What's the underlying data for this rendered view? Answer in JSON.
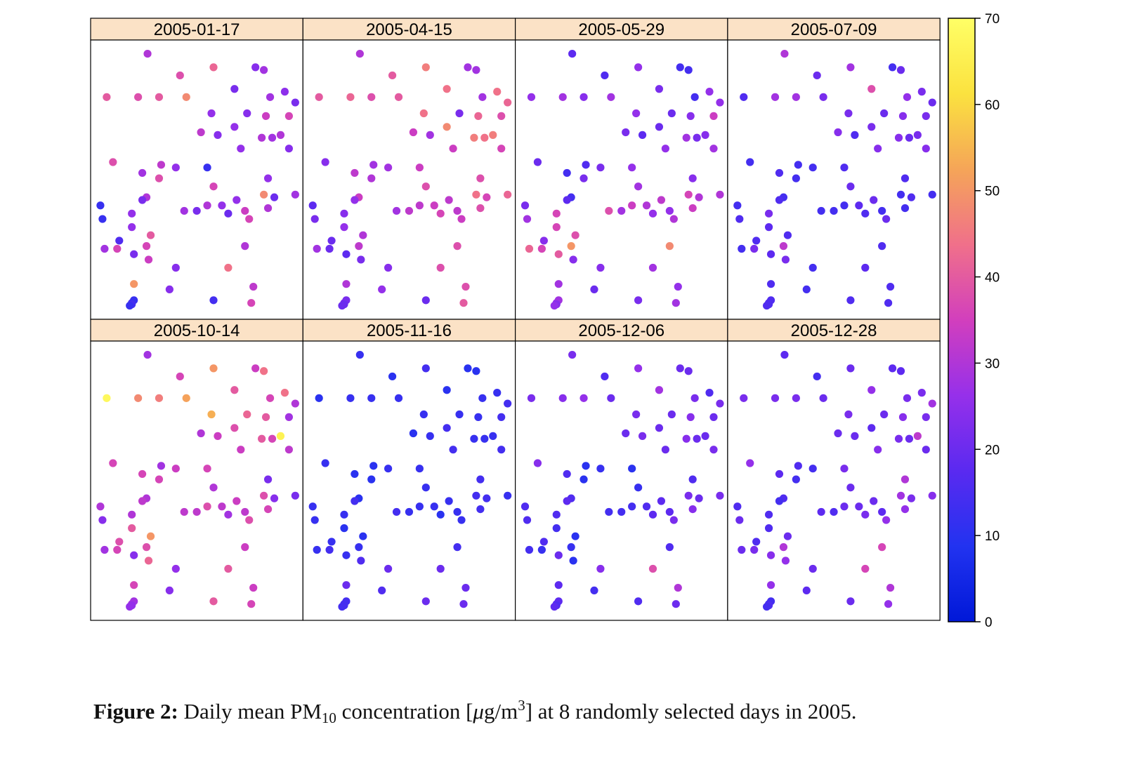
{
  "caption": {
    "label": "Figure 2:",
    "text_before": " Daily mean PM",
    "subscript": "10",
    "text_mid": " concentration [",
    "mu": "μ",
    "text_unit": "g/m",
    "superscript": "3",
    "text_after": "] at 8 randomly selected days in 2005."
  },
  "colorbar": {
    "min": 0,
    "max": 70,
    "ticks": [
      0,
      10,
      20,
      30,
      40,
      50,
      60,
      70
    ],
    "colors": [
      "#0018d8",
      "#2233f0",
      "#5a2af0",
      "#9630ea",
      "#d23fbd",
      "#f0708a",
      "#f5a558",
      "#fbe23f",
      "#ffff66"
    ]
  },
  "chart_data": {
    "type": "scatter",
    "title": "",
    "xlabel": "",
    "ylabel": "",
    "value_range": [
      0,
      70
    ],
    "stations": [
      [
        0.265,
        0.03
      ],
      [
        0.42,
        0.11
      ],
      [
        0.58,
        0.08
      ],
      [
        0.78,
        0.08
      ],
      [
        0.82,
        0.09
      ],
      [
        0.68,
        0.16
      ],
      [
        0.92,
        0.17
      ],
      [
        0.22,
        0.19
      ],
      [
        0.32,
        0.19
      ],
      [
        0.45,
        0.19
      ],
      [
        0.07,
        0.19
      ],
      [
        0.85,
        0.19
      ],
      [
        0.97,
        0.21
      ],
      [
        0.74,
        0.25
      ],
      [
        0.57,
        0.25
      ],
      [
        0.83,
        0.26
      ],
      [
        0.94,
        0.26
      ],
      [
        0.68,
        0.3
      ],
      [
        0.52,
        0.32
      ],
      [
        0.6,
        0.33
      ],
      [
        0.81,
        0.34
      ],
      [
        0.86,
        0.34
      ],
      [
        0.9,
        0.33
      ],
      [
        0.71,
        0.38
      ],
      [
        0.94,
        0.38
      ],
      [
        0.1,
        0.43
      ],
      [
        0.24,
        0.47
      ],
      [
        0.33,
        0.44
      ],
      [
        0.4,
        0.45
      ],
      [
        0.55,
        0.45
      ],
      [
        0.84,
        0.49
      ],
      [
        0.32,
        0.49
      ],
      [
        0.58,
        0.52
      ],
      [
        0.82,
        0.55
      ],
      [
        0.04,
        0.59
      ],
      [
        0.26,
        0.56
      ],
      [
        0.24,
        0.57
      ],
      [
        0.5,
        0.61
      ],
      [
        0.55,
        0.59
      ],
      [
        0.62,
        0.59
      ],
      [
        0.69,
        0.57
      ],
      [
        0.73,
        0.61
      ],
      [
        0.87,
        0.56
      ],
      [
        0.84,
        0.6
      ],
      [
        0.97,
        0.55
      ],
      [
        0.44,
        0.61
      ],
      [
        0.19,
        0.62
      ],
      [
        0.65,
        0.62
      ],
      [
        0.75,
        0.64
      ],
      [
        0.05,
        0.64
      ],
      [
        0.19,
        0.67
      ],
      [
        0.13,
        0.72
      ],
      [
        0.28,
        0.7
      ],
      [
        0.26,
        0.74
      ],
      [
        0.06,
        0.75
      ],
      [
        0.12,
        0.75
      ],
      [
        0.2,
        0.77
      ],
      [
        0.73,
        0.74
      ],
      [
        0.27,
        0.79
      ],
      [
        0.4,
        0.82
      ],
      [
        0.65,
        0.82
      ],
      [
        0.2,
        0.88
      ],
      [
        0.37,
        0.9
      ],
      [
        0.77,
        0.89
      ],
      [
        0.58,
        0.94
      ],
      [
        0.19,
        0.95
      ],
      [
        0.2,
        0.94
      ],
      [
        0.19,
        0.955
      ],
      [
        0.18,
        0.96
      ],
      [
        0.76,
        0.95
      ]
    ],
    "panels": [
      {
        "title": "2005-01-17",
        "values": [
          30,
          38,
          42,
          24,
          28,
          22,
          25,
          38,
          40,
          48,
          40,
          28,
          22,
          24,
          26,
          34,
          36,
          26,
          32,
          24,
          30,
          28,
          30,
          26,
          24,
          38,
          28,
          32,
          26,
          12,
          26,
          38,
          36,
          48,
          12,
          30,
          22,
          22,
          30,
          26,
          26,
          34,
          20,
          30,
          28,
          28,
          26,
          20,
          36,
          12,
          26,
          16,
          40,
          36,
          28,
          36,
          22,
          30,
          34,
          24,
          44,
          50,
          24,
          32,
          14,
          14,
          12,
          14,
          12,
          36
        ]
      },
      {
        "title": "2005-04-15",
        "values": [
          30,
          40,
          46,
          28,
          28,
          44,
          44,
          42,
          38,
          40,
          40,
          28,
          42,
          22,
          44,
          42,
          38,
          48,
          34,
          28,
          46,
          44,
          46,
          34,
          36,
          24,
          32,
          28,
          28,
          34,
          38,
          30,
          38,
          44,
          18,
          34,
          26,
          32,
          32,
          34,
          32,
          32,
          36,
          38,
          42,
          28,
          24,
          36,
          34,
          22,
          26,
          20,
          30,
          32,
          28,
          20,
          18,
          38,
          22,
          24,
          38,
          30,
          26,
          38,
          20,
          22,
          22,
          20,
          20,
          40
        ]
      },
      {
        "title": "2005-05-29",
        "values": [
          18,
          16,
          26,
          14,
          14,
          22,
          26,
          28,
          24,
          28,
          26,
          14,
          26,
          20,
          26,
          24,
          34,
          20,
          22,
          18,
          28,
          22,
          24,
          26,
          28,
          20,
          14,
          16,
          22,
          26,
          24,
          22,
          28,
          36,
          22,
          14,
          18,
          28,
          34,
          30,
          32,
          26,
          30,
          34,
          30,
          38,
          36,
          26,
          30,
          28,
          36,
          24,
          38,
          50,
          42,
          36,
          40,
          48,
          24,
          24,
          28,
          28,
          20,
          26,
          22,
          26,
          28,
          24,
          26,
          28
        ]
      },
      {
        "title": "2005-07-09",
        "values": [
          30,
          20,
          28,
          14,
          20,
          38,
          22,
          28,
          28,
          22,
          16,
          26,
          20,
          20,
          22,
          24,
          22,
          22,
          24,
          16,
          24,
          20,
          22,
          24,
          24,
          14,
          16,
          14,
          14,
          16,
          16,
          14,
          20,
          14,
          14,
          14,
          16,
          14,
          14,
          18,
          20,
          14,
          16,
          14,
          14,
          14,
          22,
          16,
          20,
          16,
          18,
          16,
          16,
          32,
          14,
          22,
          18,
          16,
          22,
          14,
          18,
          16,
          14,
          16,
          16,
          16,
          16,
          16,
          16,
          16
        ]
      },
      {
        "title": "2005-10-14",
        "values": [
          28,
          36,
          50,
          34,
          44,
          40,
          44,
          48,
          46,
          52,
          68,
          36,
          30,
          42,
          54,
          40,
          28,
          38,
          30,
          34,
          40,
          36,
          66,
          34,
          32,
          36,
          36,
          28,
          34,
          36,
          22,
          36,
          30,
          38,
          30,
          30,
          32,
          32,
          38,
          32,
          34,
          32,
          24,
          36,
          22,
          32,
          30,
          28,
          38,
          24,
          40,
          38,
          50,
          38,
          28,
          36,
          24,
          34,
          42,
          26,
          40,
          36,
          24,
          34,
          40,
          28,
          28,
          26,
          26,
          36
        ]
      },
      {
        "title": "2005-11-16",
        "values": [
          12,
          10,
          14,
          10,
          10,
          10,
          12,
          12,
          12,
          12,
          10,
          12,
          14,
          12,
          12,
          12,
          14,
          14,
          10,
          12,
          12,
          12,
          12,
          14,
          14,
          12,
          10,
          10,
          12,
          12,
          14,
          10,
          12,
          14,
          12,
          10,
          14,
          12,
          12,
          12,
          12,
          12,
          14,
          14,
          12,
          14,
          12,
          10,
          12,
          12,
          10,
          12,
          10,
          12,
          12,
          14,
          12,
          14,
          16,
          20,
          20,
          20,
          16,
          20,
          20,
          14,
          14,
          14,
          14,
          20
        ]
      },
      {
        "title": "2005-12-06",
        "values": [
          22,
          16,
          26,
          20,
          20,
          28,
          16,
          24,
          26,
          20,
          22,
          22,
          22,
          20,
          22,
          24,
          20,
          20,
          20,
          22,
          24,
          20,
          20,
          20,
          22,
          24,
          16,
          10,
          12,
          10,
          16,
          10,
          12,
          22,
          16,
          16,
          18,
          14,
          14,
          16,
          18,
          18,
          20,
          24,
          22,
          14,
          16,
          18,
          22,
          16,
          14,
          16,
          10,
          12,
          14,
          12,
          20,
          16,
          10,
          24,
          38,
          18,
          14,
          30,
          16,
          18,
          18,
          16,
          18,
          20
        ]
      },
      {
        "title": "2005-12-28",
        "values": [
          18,
          14,
          20,
          18,
          18,
          26,
          22,
          22,
          22,
          20,
          22,
          22,
          28,
          20,
          22,
          24,
          22,
          18,
          20,
          20,
          22,
          20,
          32,
          24,
          20,
          26,
          18,
          16,
          14,
          22,
          30,
          14,
          20,
          28,
          16,
          16,
          14,
          16,
          20,
          20,
          20,
          18,
          22,
          26,
          24,
          18,
          16,
          22,
          26,
          20,
          16,
          16,
          20,
          30,
          20,
          22,
          24,
          36,
          26,
          20,
          36,
          26,
          18,
          30,
          20,
          14,
          14,
          16,
          14,
          26
        ]
      }
    ]
  }
}
